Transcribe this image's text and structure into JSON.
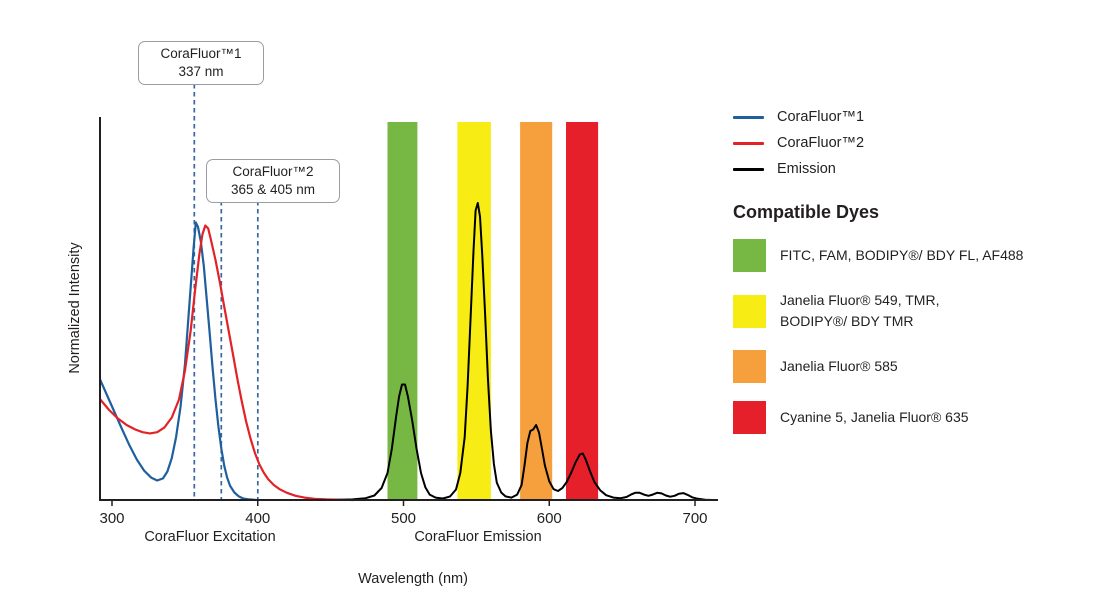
{
  "chart_data": {
    "type": "line",
    "title": "",
    "xlabel": "Wavelength (nm)",
    "ylabel": "Normalized Intensity",
    "x_ticks": [
      300,
      400,
      500,
      600,
      700
    ],
    "x_range_nm": [
      292,
      715
    ],
    "y_range": [
      0,
      1
    ],
    "grid": false,
    "axis_captions": {
      "excitation": "CoraFluor Excitation",
      "emission": "CoraFluor Emission"
    },
    "colors": {
      "axis": "#231f20",
      "marker_line": "#36699f"
    },
    "callouts": [
      {
        "id": "corafluor1",
        "lines": [
          "CoraFluor™1",
          "337 nm"
        ]
      },
      {
        "id": "corafluor2",
        "lines": [
          "CoraFluor™2",
          "365 & 405 nm"
        ]
      }
    ],
    "markers": [
      {
        "id": "337nm",
        "wavelength_nm": 337,
        "plot_nm": 356.5,
        "top_y": 84
      },
      {
        "id": "365nm",
        "wavelength_nm": 365,
        "plot_nm": 375,
        "top_y": 201
      },
      {
        "id": "405nm",
        "wavelength_nm": 405,
        "plot_nm": 400,
        "top_y": 201
      }
    ],
    "filter_bands": [
      {
        "id": "green",
        "color": "#76b843",
        "from_nm": 489,
        "to_nm": 509.5
      },
      {
        "id": "yellow",
        "color": "#f7ec13",
        "from_nm": 537,
        "to_nm": 560
      },
      {
        "id": "orange",
        "color": "#f5a03c",
        "from_nm": 580,
        "to_nm": 602
      },
      {
        "id": "red",
        "color": "#e6202a",
        "from_nm": 611.5,
        "to_nm": 633.5
      }
    ],
    "series": [
      {
        "id": "corafluor1-excitation",
        "name": "CoraFluor™1",
        "color": "#1f5f9e",
        "stroke_width": 2.2,
        "points": [
          [
            292,
            0.4
          ],
          [
            297,
            0.345
          ],
          [
            302,
            0.29
          ],
          [
            307,
            0.235
          ],
          [
            312,
            0.182
          ],
          [
            317,
            0.135
          ],
          [
            322,
            0.098
          ],
          [
            327,
            0.074
          ],
          [
            331,
            0.065
          ],
          [
            335,
            0.072
          ],
          [
            338,
            0.095
          ],
          [
            341,
            0.14
          ],
          [
            344,
            0.21
          ],
          [
            347,
            0.31
          ],
          [
            350,
            0.45
          ],
          [
            352,
            0.58
          ],
          [
            354,
            0.71
          ],
          [
            356,
            0.84
          ],
          [
            357.5,
            0.925
          ],
          [
            359,
            0.91
          ],
          [
            361,
            0.86
          ],
          [
            363,
            0.78
          ],
          [
            365,
            0.67
          ],
          [
            367,
            0.555
          ],
          [
            369,
            0.44
          ],
          [
            371,
            0.335
          ],
          [
            373,
            0.245
          ],
          [
            375,
            0.172
          ],
          [
            377,
            0.115
          ],
          [
            379,
            0.075
          ],
          [
            381,
            0.047
          ],
          [
            384,
            0.025
          ],
          [
            387,
            0.012
          ],
          [
            390,
            0.005
          ],
          [
            394,
            0.002
          ],
          [
            399,
            0
          ]
        ]
      },
      {
        "id": "corafluor2-excitation",
        "name": "CoraFluor™2",
        "color": "#e32228",
        "stroke_width": 2.2,
        "points": [
          [
            292,
            0.335
          ],
          [
            298,
            0.3
          ],
          [
            304,
            0.272
          ],
          [
            310,
            0.25
          ],
          [
            316,
            0.235
          ],
          [
            321,
            0.226
          ],
          [
            326,
            0.222
          ],
          [
            331,
            0.226
          ],
          [
            336,
            0.242
          ],
          [
            341,
            0.275
          ],
          [
            346,
            0.335
          ],
          [
            350,
            0.43
          ],
          [
            354,
            0.565
          ],
          [
            357,
            0.7
          ],
          [
            360,
            0.82
          ],
          [
            362,
            0.885
          ],
          [
            364,
            0.915
          ],
          [
            366,
            0.905
          ],
          [
            368,
            0.865
          ],
          [
            371,
            0.8
          ],
          [
            374,
            0.725
          ],
          [
            377,
            0.645
          ],
          [
            380,
            0.565
          ],
          [
            383,
            0.485
          ],
          [
            386,
            0.405
          ],
          [
            389,
            0.33
          ],
          [
            392,
            0.262
          ],
          [
            395,
            0.205
          ],
          [
            398,
            0.158
          ],
          [
            401,
            0.12
          ],
          [
            404,
            0.092
          ],
          [
            407,
            0.07
          ],
          [
            411,
            0.05
          ],
          [
            415,
            0.036
          ],
          [
            420,
            0.024
          ],
          [
            426,
            0.014
          ],
          [
            432,
            0.008
          ],
          [
            439,
            0.004
          ],
          [
            447,
            0.002
          ],
          [
            456,
            0.001
          ],
          [
            466,
            0
          ]
        ]
      },
      {
        "id": "emission",
        "name": "Emission",
        "color": "#000000",
        "stroke_width": 2,
        "points": [
          [
            452,
            0
          ],
          [
            465,
            0.002
          ],
          [
            474,
            0.006
          ],
          [
            480,
            0.015
          ],
          [
            485,
            0.04
          ],
          [
            489,
            0.09
          ],
          [
            492,
            0.17
          ],
          [
            495,
            0.28
          ],
          [
            497,
            0.345
          ],
          [
            499,
            0.385
          ],
          [
            501,
            0.385
          ],
          [
            503,
            0.345
          ],
          [
            506,
            0.265
          ],
          [
            509,
            0.17
          ],
          [
            512,
            0.09
          ],
          [
            515,
            0.042
          ],
          [
            518,
            0.018
          ],
          [
            522,
            0.008
          ],
          [
            527,
            0.005
          ],
          [
            532,
            0.012
          ],
          [
            536,
            0.035
          ],
          [
            539,
            0.09
          ],
          [
            542,
            0.21
          ],
          [
            544,
            0.38
          ],
          [
            546,
            0.6
          ],
          [
            548,
            0.83
          ],
          [
            549.5,
            0.965
          ],
          [
            551,
            0.99
          ],
          [
            552.5,
            0.945
          ],
          [
            554,
            0.82
          ],
          [
            556,
            0.62
          ],
          [
            558,
            0.4
          ],
          [
            560,
            0.23
          ],
          [
            562,
            0.12
          ],
          [
            564,
            0.058
          ],
          [
            567,
            0.025
          ],
          [
            570,
            0.012
          ],
          [
            574,
            0.008
          ],
          [
            578,
            0.018
          ],
          [
            581,
            0.05
          ],
          [
            583,
            0.115
          ],
          [
            585,
            0.19
          ],
          [
            587,
            0.23
          ],
          [
            589,
            0.235
          ],
          [
            591,
            0.25
          ],
          [
            593,
            0.225
          ],
          [
            595,
            0.17
          ],
          [
            597,
            0.115
          ],
          [
            600,
            0.062
          ],
          [
            603,
            0.036
          ],
          [
            606,
            0.03
          ],
          [
            609,
            0.04
          ],
          [
            612,
            0.06
          ],
          [
            615,
            0.09
          ],
          [
            618,
            0.125
          ],
          [
            621,
            0.152
          ],
          [
            623,
            0.155
          ],
          [
            625,
            0.135
          ],
          [
            628,
            0.095
          ],
          [
            631,
            0.06
          ],
          [
            635,
            0.032
          ],
          [
            639,
            0.016
          ],
          [
            644,
            0.008
          ],
          [
            649,
            0.006
          ],
          [
            653,
            0.01
          ],
          [
            656,
            0.018
          ],
          [
            659,
            0.024
          ],
          [
            662,
            0.024
          ],
          [
            665,
            0.018
          ],
          [
            668,
            0.014
          ],
          [
            671,
            0.018
          ],
          [
            674,
            0.024
          ],
          [
            677,
            0.022
          ],
          [
            680,
            0.015
          ],
          [
            683,
            0.011
          ],
          [
            686,
            0.014
          ],
          [
            689,
            0.021
          ],
          [
            692,
            0.023
          ],
          [
            695,
            0.017
          ],
          [
            698,
            0.009
          ],
          [
            702,
            0.004
          ],
          [
            707,
            0.001
          ],
          [
            712,
            0
          ]
        ]
      }
    ]
  },
  "legend": {
    "entries": [
      {
        "id": "corafluor1",
        "label": "CoraFluor™1",
        "color": "#1f5f9e"
      },
      {
        "id": "corafluor2",
        "label": "CoraFluor™2",
        "color": "#e32228"
      },
      {
        "id": "emission",
        "label": "Emission",
        "color": "#000000"
      }
    ]
  },
  "compatible_dyes": {
    "heading": "Compatible Dyes",
    "items": [
      {
        "id": "green",
        "color": "#76b843",
        "label": "FITC, FAM, BODIPY®/ BDY FL, AF488"
      },
      {
        "id": "yellow",
        "color": "#f7ec13",
        "label": "Janelia Fluor® 549, TMR,\nBODIPY®/ BDY TMR"
      },
      {
        "id": "orange",
        "color": "#f5a03c",
        "label": "Janelia Fluor® 585"
      },
      {
        "id": "red",
        "color": "#e6202a",
        "label": "Cyanine 5, Janelia Fluor® 635"
      }
    ]
  }
}
